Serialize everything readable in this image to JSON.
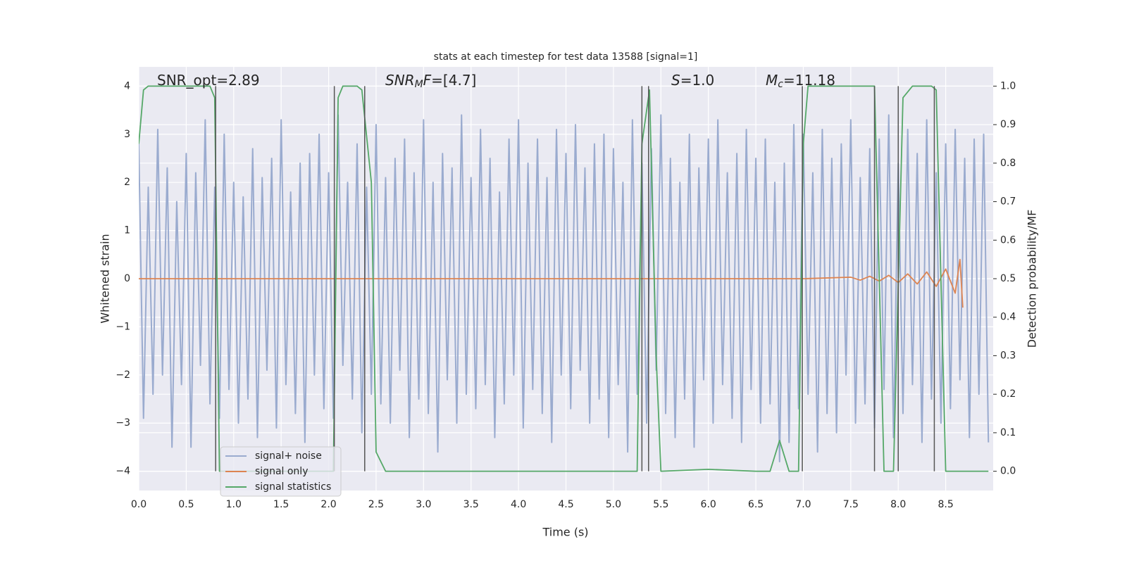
{
  "chart_data": {
    "type": "line",
    "title": "stats at each timestep for test data 13588 [signal=1]",
    "xlabel": "Time (s)",
    "ylabel": "Whitened strain",
    "y2label": "Detection probability/MF",
    "xlim": [
      0,
      9.0
    ],
    "ylim": [
      -4.4,
      4.4
    ],
    "y2lim": [
      -0.05,
      1.05
    ],
    "xticks": [
      {
        "value": 0,
        "label": "0.0"
      },
      0.5,
      {
        "value": 1,
        "label": "1.0"
      },
      1.5,
      {
        "value": 2,
        "label": "2.0"
      },
      2.5,
      {
        "value": 3,
        "label": "3.0"
      },
      3.5,
      {
        "value": 4,
        "label": "4.0"
      },
      4.5,
      {
        "value": 5,
        "label": "5.0"
      },
      5.5,
      {
        "value": 6,
        "label": "6.0"
      },
      6.5,
      {
        "value": 7,
        "label": "7.0"
      },
      7.5,
      {
        "value": 8,
        "label": "8.0"
      },
      8.5
    ],
    "yticks": [
      {
        "value": -4,
        "label": "−4"
      },
      {
        "value": -3,
        "label": "−3"
      },
      {
        "value": -2,
        "label": "−2"
      },
      {
        "value": -1,
        "label": "−1"
      },
      0,
      1,
      2,
      3,
      4
    ],
    "y2ticks": [
      {
        "value": 0,
        "label": "0.0"
      },
      0.1,
      0.2,
      0.3,
      0.4,
      0.5,
      0.6,
      0.7,
      0.8,
      0.9,
      {
        "value": 1,
        "label": "1.0"
      }
    ],
    "grid": true,
    "series": [
      {
        "name": "signal+ noise",
        "color": "#9aabcf",
        "x": [
          0,
          0.05,
          0.1,
          0.15,
          0.2,
          0.25,
          0.3,
          0.35,
          0.4,
          0.45,
          0.5,
          0.55,
          0.6,
          0.65,
          0.7,
          0.75,
          0.8,
          0.85,
          0.9,
          0.95,
          1,
          1.05,
          1.1,
          1.15,
          1.2,
          1.25,
          1.3,
          1.35,
          1.4,
          1.45,
          1.5,
          1.55,
          1.6,
          1.65,
          1.7,
          1.75,
          1.8,
          1.85,
          1.9,
          1.95,
          2,
          2.05,
          2.1,
          2.15,
          2.2,
          2.25,
          2.3,
          2.35,
          2.4,
          2.45,
          2.5,
          2.55,
          2.6,
          2.65,
          2.7,
          2.75,
          2.8,
          2.85,
          2.9,
          2.95,
          3,
          3.05,
          3.1,
          3.15,
          3.2,
          3.25,
          3.3,
          3.35,
          3.4,
          3.45,
          3.5,
          3.55,
          3.6,
          3.65,
          3.7,
          3.75,
          3.8,
          3.85,
          3.9,
          3.95,
          4,
          4.05,
          4.1,
          4.15,
          4.2,
          4.25,
          4.3,
          4.35,
          4.4,
          4.45,
          4.5,
          4.55,
          4.6,
          4.65,
          4.7,
          4.75,
          4.8,
          4.85,
          4.9,
          4.95,
          5,
          5.05,
          5.1,
          5.15,
          5.2,
          5.25,
          5.3,
          5.35,
          5.4,
          5.45,
          5.5,
          5.55,
          5.6,
          5.65,
          5.7,
          5.75,
          5.8,
          5.85,
          5.9,
          5.95,
          6,
          6.05,
          6.1,
          6.15,
          6.2,
          6.25,
          6.3,
          6.35,
          6.4,
          6.45,
          6.5,
          6.55,
          6.6,
          6.65,
          6.7,
          6.75,
          6.8,
          6.85,
          6.9,
          6.95,
          7,
          7.05,
          7.1,
          7.15,
          7.2,
          7.25,
          7.3,
          7.35,
          7.4,
          7.45,
          7.5,
          7.55,
          7.6,
          7.65,
          7.7,
          7.75,
          7.8,
          7.85,
          7.9,
          7.95,
          8,
          8.05,
          8.1,
          8.15,
          8.2,
          8.25,
          8.3,
          8.35,
          8.4,
          8.45,
          8.5,
          8.55,
          8.6,
          8.65,
          8.7,
          8.75,
          8.8,
          8.85,
          8.9,
          8.95
        ],
        "values": [
          2.8,
          -2.9,
          1.9,
          -2.4,
          3.1,
          -2.0,
          2.3,
          -3.5,
          1.6,
          -2.2,
          2.6,
          -3.5,
          2.2,
          -1.8,
          3.3,
          -2.6,
          1.9,
          -2.9,
          3.0,
          -2.3,
          2.0,
          -3.0,
          1.7,
          -2.5,
          2.7,
          -3.3,
          2.1,
          -1.9,
          2.5,
          -3.1,
          3.3,
          -2.2,
          1.8,
          -2.8,
          2.4,
          -3.4,
          2.6,
          -2.0,
          3.0,
          -2.7,
          2.2,
          -2.9,
          3.4,
          -1.8,
          2.0,
          -2.5,
          2.8,
          -3.2,
          1.9,
          -2.4,
          3.2,
          -2.6,
          2.1,
          -3.0,
          2.5,
          -1.9,
          2.9,
          -3.3,
          2.2,
          -2.5,
          3.3,
          -2.8,
          2.0,
          -3.6,
          2.6,
          -2.1,
          2.3,
          -3.0,
          3.4,
          -2.4,
          2.1,
          -2.7,
          3.1,
          -2.2,
          2.5,
          -3.3,
          1.8,
          -2.6,
          2.9,
          -2.0,
          3.3,
          -3.1,
          2.4,
          -2.3,
          2.9,
          -2.8,
          2.1,
          -3.4,
          3.1,
          -2.0,
          2.6,
          -2.7,
          3.2,
          -1.9,
          2.3,
          -3.0,
          2.8,
          -2.5,
          3.0,
          -3.3,
          2.7,
          -2.2,
          2.0,
          -3.6,
          3.3,
          -2.4,
          2.4,
          -3.0,
          2.7,
          -1.9,
          3.4,
          -2.8,
          2.5,
          -3.3,
          2.0,
          -2.5,
          3.0,
          -3.5,
          2.3,
          -2.1,
          2.9,
          -3.0,
          3.3,
          -2.2,
          2.2,
          -2.9,
          2.6,
          -3.4,
          3.1,
          -2.3,
          2.5,
          -3.0,
          2.9,
          -2.6,
          2.0,
          -3.8,
          2.4,
          -3.4,
          3.2,
          -2.7,
          3.0,
          -2.4,
          2.2,
          -3.6,
          3.1,
          -2.8,
          2.5,
          -3.2,
          2.8,
          -2.0,
          3.3,
          -3.0,
          2.1,
          -2.6,
          2.7,
          -3.1,
          2.9,
          -2.3,
          3.4,
          -3.3,
          2.4,
          -2.8,
          3.1,
          -2.2,
          2.6,
          -3.4,
          3.3,
          -2.5,
          2.2,
          -3.0,
          2.8,
          -2.7,
          3.1,
          -2.1,
          2.5,
          -3.3,
          2.9,
          -2.4,
          3.0,
          -3.4
        ]
      },
      {
        "name": "signal only",
        "color": "#dd8452",
        "x": [
          0,
          7.0,
          7.5,
          7.6,
          7.7,
          7.8,
          7.9,
          8.0,
          8.1,
          8.2,
          8.3,
          8.4,
          8.5,
          8.6,
          8.65,
          8.68
        ],
        "values": [
          0,
          0,
          0.03,
          -0.03,
          0.05,
          -0.05,
          0.07,
          -0.08,
          0.1,
          -0.11,
          0.14,
          -0.16,
          0.2,
          -0.3,
          0.4,
          -0.6
        ]
      },
      {
        "name": "signal statistics",
        "color": "#55a868",
        "axis": "y2",
        "x": [
          0,
          0.05,
          0.1,
          0.75,
          0.8,
          0.85,
          2.05,
          2.1,
          2.15,
          2.2,
          2.3,
          2.35,
          2.45,
          2.5,
          2.6,
          5.25,
          5.3,
          5.38,
          5.45,
          5.5,
          6.0,
          6.5,
          6.65,
          6.75,
          6.85,
          6.95,
          7.0,
          7.05,
          7.75,
          7.85,
          7.95,
          8.05,
          8.15,
          8.35,
          8.4,
          8.5,
          8.95
        ],
        "values": [
          0.85,
          0.99,
          1.0,
          1.0,
          0.97,
          0.0,
          0.0,
          0.97,
          1.0,
          1.0,
          1.0,
          0.99,
          0.75,
          0.05,
          0.0,
          0.0,
          0.85,
          0.99,
          0.3,
          0.0,
          0.005,
          0.0,
          0.0,
          0.08,
          0.0,
          0.0,
          0.85,
          1.0,
          1.0,
          0.0,
          0.0,
          0.97,
          1.0,
          1.0,
          0.99,
          0.0,
          0.0
        ]
      }
    ],
    "vlines": {
      "x": [
        0.81,
        2.06,
        2.38,
        5.3,
        5.37,
        6.99,
        7.75,
        8.0,
        8.38
      ],
      "ymin": -4,
      "ymax": 4,
      "color": "#555555"
    },
    "annotations": [
      [
        {
          "text": "SNR_opt=2.89"
        }
      ],
      [
        {
          "text": "SNR",
          "italic": true
        },
        {
          "text": "M",
          "italic": true,
          "sub": true
        },
        {
          "text": "F",
          "italic": true
        },
        {
          "text": "=[4.7]"
        }
      ],
      [
        {
          "text": "S",
          "italic": true
        },
        {
          "text": "=1.0"
        }
      ],
      [
        {
          "text": "M",
          "italic": true
        },
        {
          "text": "c",
          "italic": true,
          "sub": true
        },
        {
          "text": "=11.18"
        }
      ]
    ]
  }
}
